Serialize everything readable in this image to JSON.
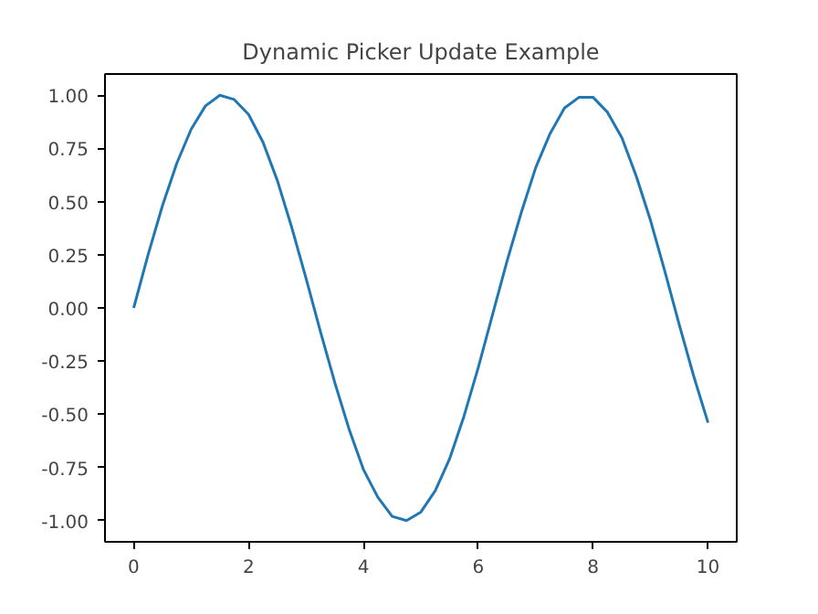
{
  "chart_data": {
    "type": "line",
    "title": "Dynamic Picker Update Example",
    "x": [
      0,
      0.25,
      0.5,
      0.75,
      1,
      1.25,
      1.5,
      1.75,
      2,
      2.25,
      2.5,
      2.75,
      3,
      3.25,
      3.5,
      3.75,
      4,
      4.25,
      4.5,
      4.75,
      5,
      5.25,
      5.5,
      5.75,
      6,
      6.25,
      6.5,
      6.75,
      7,
      7.25,
      7.5,
      7.75,
      8,
      8.25,
      8.5,
      8.75,
      9,
      9.25,
      9.5,
      9.75,
      10
    ],
    "series": [
      {
        "color": "#1f77b4",
        "values": [
          0,
          0.25,
          0.48,
          0.68,
          0.84,
          0.95,
          1.0,
          0.98,
          0.91,
          0.78,
          0.6,
          0.38,
          0.14,
          -0.11,
          -0.35,
          -0.57,
          -0.76,
          -0.89,
          -0.98,
          -1.0,
          -0.96,
          -0.86,
          -0.71,
          -0.51,
          -0.28,
          -0.03,
          0.22,
          0.45,
          0.66,
          0.82,
          0.94,
          0.99,
          0.99,
          0.92,
          0.8,
          0.62,
          0.41,
          0.17,
          -0.08,
          -0.32,
          -0.54
        ]
      }
    ],
    "xlim": [
      -0.5,
      10.5
    ],
    "ylim": [
      -1.1,
      1.1
    ],
    "xticks": [
      0,
      2,
      4,
      6,
      8,
      10
    ],
    "yticks": [
      {
        "value": -1,
        "label": "-1.00"
      },
      {
        "value": -0.75,
        "label": "-0.75"
      },
      {
        "value": -0.5,
        "label": "-0.50"
      },
      {
        "value": -0.25,
        "label": "-0.25"
      },
      {
        "value": 0,
        "label": "0.00"
      },
      {
        "value": 0.25,
        "label": "0.25"
      },
      {
        "value": 0.5,
        "label": "0.50"
      },
      {
        "value": 0.75,
        "label": "0.75"
      },
      {
        "value": 1,
        "label": "1.00"
      }
    ],
    "grid": false,
    "line_style": "solid"
  }
}
